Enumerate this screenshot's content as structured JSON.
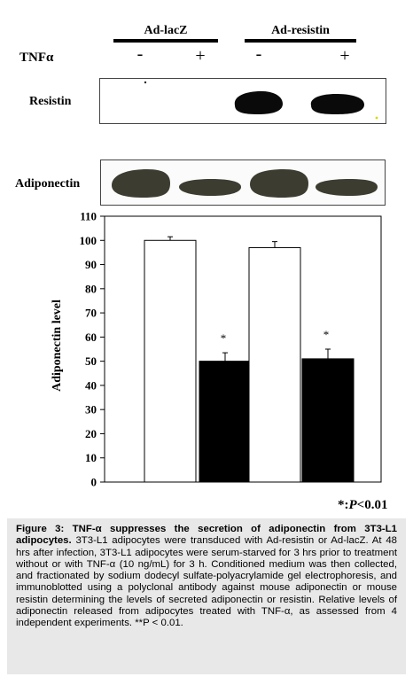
{
  "figure": {
    "groups": [
      {
        "label": "Ad-lacZ"
      },
      {
        "label": "Ad-resistin"
      }
    ],
    "treatment_label": "TNFα",
    "treatment_signs": [
      "-",
      "+",
      "-",
      "+"
    ],
    "blots": [
      {
        "label": "Resistin",
        "bands": [
          "none",
          "none",
          "strong",
          "strong"
        ]
      },
      {
        "label": "Adiponectin",
        "bands": [
          "strong",
          "weak",
          "strong",
          "weak"
        ]
      }
    ],
    "significance_note": {
      "prefix": "*:",
      "italic": "P",
      "suffix": "<0.01"
    }
  },
  "chart_data": {
    "type": "bar",
    "categories": [
      "Ad-lacZ TNFα -",
      "Ad-lacZ TNFα +",
      "Ad-resistin TNFα -",
      "Ad-resistin TNFα +"
    ],
    "category_display": [
      "",
      "",
      "",
      ""
    ],
    "values": [
      100,
      50,
      97,
      51
    ],
    "errors": [
      1.5,
      3.5,
      2.5,
      4
    ],
    "significance_markers": [
      "",
      "*",
      "",
      "*"
    ],
    "bar_colors": [
      "#ffffff",
      "#000000",
      "#ffffff",
      "#000000"
    ],
    "ylabel": "Adiponectin level",
    "ylim": [
      0,
      110
    ],
    "yticks": [
      0,
      10,
      20,
      30,
      40,
      50,
      60,
      70,
      80,
      90,
      100,
      110
    ],
    "grid": false,
    "legend": "none"
  },
  "caption": {
    "title": "Figure 3: TNF-α suppresses the secretion of adiponectin from 3T3-L1 adipocytes.",
    "body": "3T3-L1 adipocytes were transduced with Ad-resistin or Ad-lacZ. At 48 hrs after infection, 3T3-L1 adipocytes were serum-starved for 3 hrs prior to treatment without or with TNF-α (10 ng/mL) for 3 h. Conditioned medium was then collected, and fractionated by sodium dodecyl sulfate-polyacrylamide gel electrophoresis, and immunoblotted using a polyclonal antibody against mouse adiponectin or mouse resistin determining the levels of secreted adiponectin or resistin. Relative levels of adiponectin released from adipocytes treated with TNF-α, as assessed from 4 independent experiments. **P < 0.01."
  }
}
